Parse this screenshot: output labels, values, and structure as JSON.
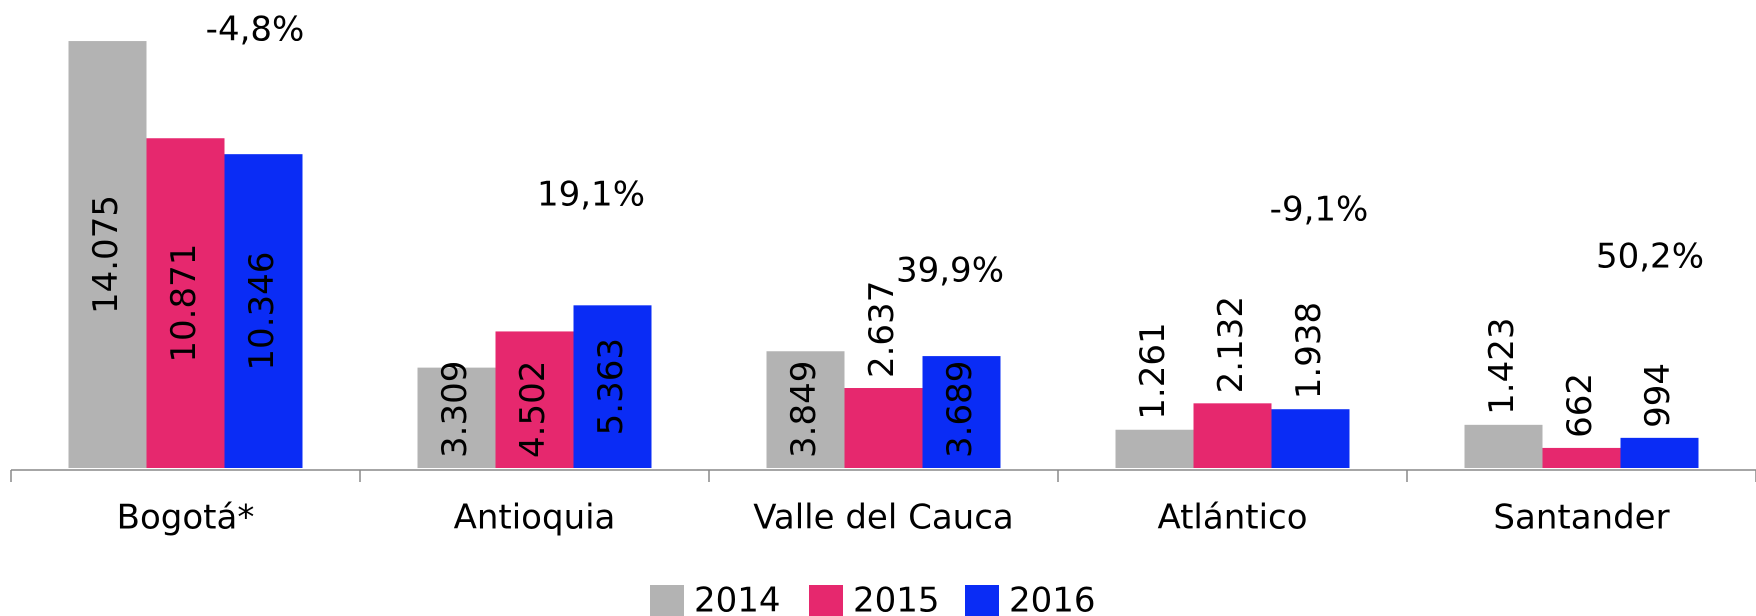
{
  "chart_data": {
    "type": "bar",
    "categories": [
      "Bogotá*",
      "Antioquia",
      "Valle del Cauca",
      "Atlántico",
      "Santander"
    ],
    "series": [
      {
        "name": "2014",
        "color": "#b3b3b3",
        "values": [
          14075,
          3309,
          3849,
          1261,
          1423
        ],
        "value_labels": [
          "14.075",
          "3.309",
          "3.849",
          "1.261",
          "1.423"
        ]
      },
      {
        "name": "2015",
        "color": "#e6286e",
        "values": [
          10871,
          4502,
          2637,
          2132,
          662
        ],
        "value_labels": [
          "10.871",
          "4.502",
          "2.637",
          "2.132",
          "662"
        ]
      },
      {
        "name": "2016",
        "color": "#0a2cf5",
        "values": [
          10346,
          5363,
          3689,
          1938,
          994
        ],
        "value_labels": [
          "10.346",
          "5.363",
          "3.689",
          "1.938",
          "994"
        ]
      }
    ],
    "annotations": [
      {
        "text": "-4,8%",
        "color": "#c00000"
      },
      {
        "text": "19,1%",
        "color": "#138a13"
      },
      {
        "text": "39,9%",
        "color": "#138a13"
      },
      {
        "text": "-9,1%",
        "color": "#c00000"
      },
      {
        "text": "50,2%",
        "color": "#138a13"
      }
    ],
    "ylim": [
      0,
      15000
    ],
    "legend": "bottom"
  }
}
